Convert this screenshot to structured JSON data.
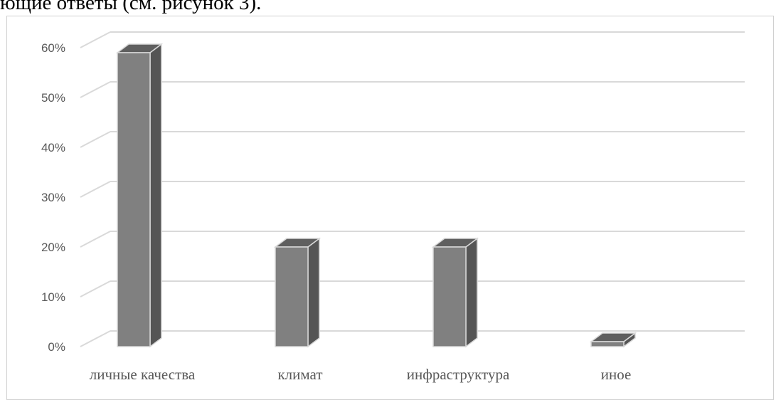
{
  "header": {
    "text": "ющие ответы (см. рисунок 3)."
  },
  "chart_data": {
    "type": "bar",
    "style": "3d-column",
    "categories": [
      "личные качества",
      "климат",
      "инфраструктура",
      "иное"
    ],
    "values": [
      59,
      20,
      20,
      1
    ],
    "ylim": [
      0,
      60
    ],
    "y_ticks": [
      "0%",
      "10%",
      "20%",
      "30%",
      "40%",
      "50%",
      "60%"
    ],
    "y_tick_values": [
      0,
      10,
      20,
      30,
      40,
      50,
      60
    ],
    "grid": true,
    "colors": {
      "front": "#808080",
      "side": "#555555",
      "top": "#5f5f5f",
      "edge": "#d9d9d9",
      "grid": "#d9d9d9"
    }
  }
}
